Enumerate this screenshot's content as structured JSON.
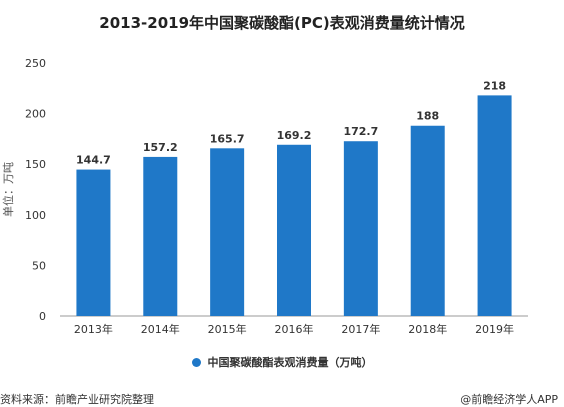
{
  "chart_data": {
    "type": "bar",
    "title": "2013-2019年中国聚碳酸酯(PC)表观消费量统计情况",
    "categories": [
      "2013年",
      "2014年",
      "2015年",
      "2016年",
      "2017年",
      "2018年",
      "2019年"
    ],
    "values": [
      144.7,
      157.2,
      165.7,
      169.2,
      172.7,
      188,
      218
    ],
    "value_labels": [
      "144.7",
      "157.2",
      "165.7",
      "169.2",
      "172.7",
      "188",
      "218"
    ],
    "ylabel": "单位：万吨",
    "ylim": [
      0,
      250
    ],
    "yticks": [
      0,
      50,
      100,
      150,
      200,
      250
    ],
    "grid": false,
    "legend": {
      "entries": [
        "中国聚碳酸酯表观消费量（万吨）"
      ],
      "placement": "bottom"
    },
    "color": "#1f78c8"
  },
  "footer": {
    "source": "资料来源：前瞻产业研究院整理",
    "brand": "@前瞻经济学人APP"
  }
}
